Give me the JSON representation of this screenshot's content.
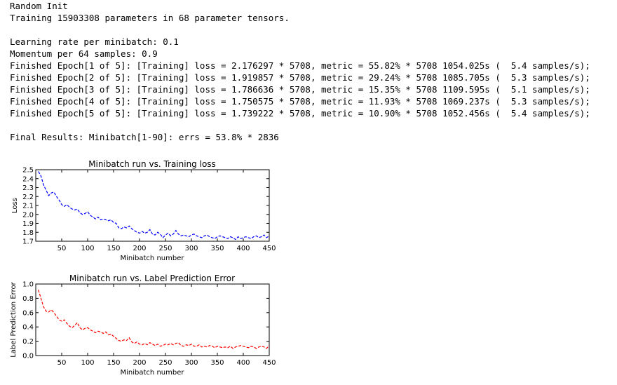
{
  "log": {
    "header": [
      "Random Init",
      "Training 15903308 parameters in 68 parameter tensors."
    ],
    "settings": [
      "Learning rate per minibatch: 0.1",
      "Momentum per 64 samples: 0.9"
    ],
    "epochs": [
      "Finished Epoch[1 of 5]: [Training] loss = 2.176297 * 5708, metric = 55.82% * 5708 1054.025s (  5.4 samples/s);",
      "Finished Epoch[2 of 5]: [Training] loss = 1.919857 * 5708, metric = 29.24% * 5708 1085.705s (  5.3 samples/s);",
      "Finished Epoch[3 of 5]: [Training] loss = 1.786636 * 5708, metric = 15.35% * 5708 1109.595s (  5.1 samples/s);",
      "Finished Epoch[4 of 5]: [Training] loss = 1.750575 * 5708, metric = 11.93% * 5708 1069.237s (  5.3 samples/s);",
      "Finished Epoch[5 of 5]: [Training] loss = 1.739222 * 5708, metric = 10.90% * 5708 1052.456s (  5.4 samples/s);"
    ],
    "final": "Final Results: Minibatch[1-90]: errs = 53.8% * 2836"
  },
  "chart_data": [
    {
      "type": "line",
      "title": "Minibatch run vs. Training loss",
      "xlabel": "Minibatch number",
      "ylabel": "Loss",
      "xlim": [
        0,
        450
      ],
      "ylim": [
        1.7,
        2.5
      ],
      "xticks": [
        50,
        100,
        150,
        200,
        250,
        300,
        350,
        400,
        450
      ],
      "xtick_labels": [
        "50",
        "100",
        "150",
        "200",
        "250",
        "300",
        "350",
        "400",
        "450"
      ],
      "yticks": [
        1.7,
        1.8,
        1.9,
        2.0,
        2.1,
        2.2,
        2.3,
        2.4,
        2.5
      ],
      "ytick_labels": [
        "1.7",
        "1.8",
        "1.9",
        "2.0",
        "2.1",
        "2.2",
        "2.3",
        "2.4",
        "2.5"
      ],
      "color": "#0000ff",
      "line_style": "dashed",
      "grid": false,
      "series": [
        {
          "x": [
            5,
            10,
            15,
            20,
            25,
            30,
            35,
            40,
            45,
            50,
            55,
            60,
            65,
            70,
            75,
            80,
            85,
            90,
            95,
            100,
            105,
            110,
            115,
            120,
            125,
            130,
            135,
            140,
            145,
            150,
            155,
            160,
            165,
            170,
            175,
            180,
            185,
            190,
            195,
            200,
            205,
            210,
            215,
            220,
            225,
            230,
            235,
            240,
            245,
            250,
            255,
            260,
            265,
            270,
            275,
            280,
            285,
            290,
            295,
            300,
            305,
            310,
            315,
            320,
            325,
            330,
            335,
            340,
            345,
            350,
            355,
            360,
            365,
            370,
            375,
            380,
            385,
            390,
            395,
            400,
            405,
            410,
            415,
            420,
            425,
            430,
            435,
            440,
            445,
            450
          ],
          "values": [
            2.48,
            2.43,
            2.33,
            2.27,
            2.21,
            2.24,
            2.25,
            2.2,
            2.16,
            2.11,
            2.09,
            2.11,
            2.08,
            2.06,
            2.05,
            2.06,
            2.02,
            2.0,
            2.01,
            2.03,
            1.99,
            1.97,
            1.95,
            1.97,
            1.94,
            1.95,
            1.94,
            1.93,
            1.94,
            1.91,
            1.9,
            1.85,
            1.84,
            1.86,
            1.85,
            1.87,
            1.84,
            1.82,
            1.8,
            1.79,
            1.81,
            1.79,
            1.8,
            1.83,
            1.78,
            1.77,
            1.8,
            1.78,
            1.74,
            1.77,
            1.79,
            1.76,
            1.78,
            1.82,
            1.78,
            1.76,
            1.77,
            1.76,
            1.75,
            1.77,
            1.78,
            1.76,
            1.75,
            1.74,
            1.76,
            1.77,
            1.75,
            1.74,
            1.73,
            1.75,
            1.76,
            1.75,
            1.74,
            1.73,
            1.75,
            1.74,
            1.72,
            1.75,
            1.73,
            1.74,
            1.75,
            1.74,
            1.73,
            1.75,
            1.76,
            1.74,
            1.75,
            1.77,
            1.74,
            1.76
          ]
        }
      ]
    },
    {
      "type": "line",
      "title": "Minibatch run vs. Label Prediction Error",
      "xlabel": "Minibatch number",
      "ylabel": "Label Prediction Error",
      "xlim": [
        0,
        450
      ],
      "ylim": [
        0.0,
        1.0
      ],
      "xticks": [
        50,
        100,
        150,
        200,
        250,
        300,
        350,
        400,
        450
      ],
      "xtick_labels": [
        "50",
        "100",
        "150",
        "200",
        "250",
        "300",
        "350",
        "400",
        "450"
      ],
      "yticks": [
        0.0,
        0.2,
        0.4,
        0.6,
        0.8,
        1.0
      ],
      "ytick_labels": [
        "0.0",
        "0.2",
        "0.4",
        "0.6",
        "0.8",
        "1.0"
      ],
      "color": "#ff0000",
      "line_style": "dashed",
      "grid": false,
      "series": [
        {
          "x": [
            5,
            10,
            15,
            20,
            25,
            30,
            35,
            40,
            45,
            50,
            55,
            60,
            65,
            70,
            75,
            80,
            85,
            90,
            95,
            100,
            105,
            110,
            115,
            120,
            125,
            130,
            135,
            140,
            145,
            150,
            155,
            160,
            165,
            170,
            175,
            180,
            185,
            190,
            195,
            200,
            205,
            210,
            215,
            220,
            225,
            230,
            235,
            240,
            245,
            250,
            255,
            260,
            265,
            270,
            275,
            280,
            285,
            290,
            295,
            300,
            305,
            310,
            315,
            320,
            325,
            330,
            335,
            340,
            345,
            350,
            355,
            360,
            365,
            370,
            375,
            380,
            385,
            390,
            395,
            400,
            405,
            410,
            415,
            420,
            425,
            430,
            435,
            440,
            445,
            450
          ],
          "values": [
            0.92,
            0.8,
            0.68,
            0.62,
            0.61,
            0.64,
            0.6,
            0.55,
            0.5,
            0.48,
            0.5,
            0.45,
            0.41,
            0.39,
            0.42,
            0.46,
            0.39,
            0.36,
            0.38,
            0.39,
            0.36,
            0.34,
            0.32,
            0.34,
            0.33,
            0.31,
            0.33,
            0.29,
            0.3,
            0.27,
            0.24,
            0.21,
            0.2,
            0.22,
            0.21,
            0.25,
            0.19,
            0.17,
            0.19,
            0.16,
            0.15,
            0.17,
            0.15,
            0.18,
            0.16,
            0.14,
            0.16,
            0.13,
            0.14,
            0.16,
            0.15,
            0.17,
            0.15,
            0.17,
            0.18,
            0.14,
            0.13,
            0.15,
            0.14,
            0.16,
            0.13,
            0.13,
            0.15,
            0.12,
            0.13,
            0.12,
            0.14,
            0.13,
            0.11,
            0.13,
            0.12,
            0.11,
            0.12,
            0.11,
            0.13,
            0.1,
            0.12,
            0.13,
            0.14,
            0.13,
            0.12,
            0.11,
            0.13,
            0.12,
            0.1,
            0.12,
            0.13,
            0.12,
            0.1,
            0.14
          ]
        }
      ]
    }
  ]
}
